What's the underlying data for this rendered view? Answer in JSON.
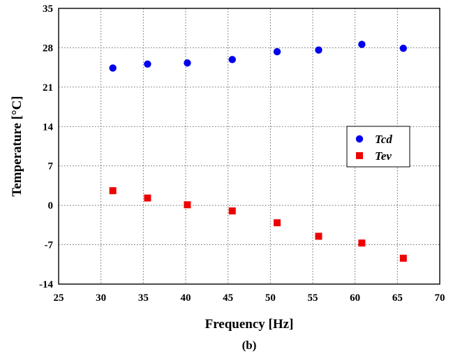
{
  "chart_data": {
    "type": "scatter",
    "title": "",
    "xlabel": "Frequency [Hz]",
    "ylabel": "Temperature [°C]",
    "caption": "(b)",
    "xlim": [
      25,
      70
    ],
    "ylim": [
      -14,
      35
    ],
    "xticks": [
      25,
      30,
      35,
      40,
      45,
      50,
      55,
      60,
      65,
      70
    ],
    "yticks": [
      -14,
      -7,
      0,
      7,
      14,
      21,
      28,
      35
    ],
    "grid": true,
    "legend_position": "center-right",
    "series": [
      {
        "name": "Tcd",
        "marker": "circle",
        "color": "#0000ee",
        "x": [
          31.4,
          35.5,
          40.2,
          45.5,
          50.8,
          55.7,
          60.8,
          65.7
        ],
        "y": [
          24.4,
          25.1,
          25.3,
          25.9,
          27.3,
          27.6,
          28.6,
          27.9
        ]
      },
      {
        "name": "Tev",
        "marker": "square",
        "color": "#ee0000",
        "x": [
          31.4,
          35.5,
          40.2,
          45.5,
          50.8,
          55.7,
          60.8,
          65.7
        ],
        "y": [
          2.6,
          1.3,
          0.1,
          -1.0,
          -3.1,
          -5.5,
          -6.7,
          -9.4
        ]
      }
    ]
  }
}
